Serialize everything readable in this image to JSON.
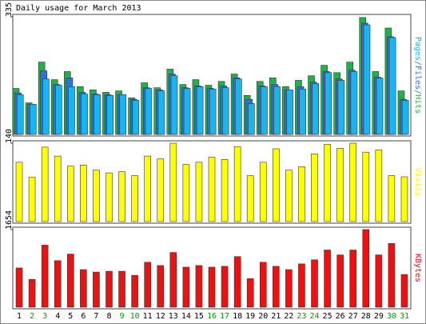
{
  "chart_data": [
    {
      "type": "bar",
      "title": "Daily usage for March 2013",
      "categories": [
        "1",
        "2",
        "3",
        "4",
        "5",
        "6",
        "7",
        "8",
        "9",
        "10",
        "11",
        "12",
        "13",
        "14",
        "15",
        "16",
        "17",
        "18",
        "19",
        "20",
        "21",
        "22",
        "23",
        "24",
        "25",
        "26",
        "27",
        "28",
        "29",
        "30",
        "31"
      ],
      "weekend": [
        "2",
        "3",
        "9",
        "10",
        "16",
        "17",
        "23",
        "24",
        "30",
        "31"
      ],
      "weekend_color": "#00a000",
      "legend_separator": "/",
      "ylim": [
        0,
        335
      ],
      "yticks": [
        335
      ],
      "series": [
        {
          "name": "Hits",
          "color": "#22b04a",
          "values": [
            131,
            90,
            206,
            156,
            179,
            136,
            127,
            120,
            124,
            104,
            147,
            133,
            186,
            142,
            156,
            140,
            151,
            172,
            111,
            151,
            161,
            136,
            154,
            167,
            197,
            176,
            206,
            333,
            179,
            303,
            124
          ]
        },
        {
          "name": "Files",
          "color": "#2f6fe0",
          "values": [
            118,
            86,
            181,
            142,
            161,
            120,
            115,
            113,
            113,
            100,
            133,
            127,
            172,
            133,
            138,
            131,
            138,
            161,
            100,
            138,
            142,
            127,
            136,
            149,
            179,
            158,
            183,
            317,
            163,
            278,
            100
          ]
        },
        {
          "name": "Pages",
          "color": "#19b5f0",
          "values": [
            113,
            86,
            158,
            140,
            136,
            115,
            113,
            111,
            113,
            97,
            131,
            124,
            167,
            131,
            136,
            129,
            133,
            158,
            88,
            136,
            136,
            127,
            129,
            145,
            176,
            154,
            179,
            312,
            161,
            276,
            97
          ]
        }
      ]
    },
    {
      "type": "bar",
      "ylim": [
        0,
        140
      ],
      "yticks": [
        140
      ],
      "series": [
        {
          "name": "Visits",
          "color": "#ffff00",
          "values": [
            106,
            79,
            133,
            117,
            99,
            101,
            92,
            87,
            89,
            82,
            117,
            112,
            140,
            102,
            106,
            115,
            111,
            134,
            82,
            106,
            130,
            92,
            98,
            121,
            138,
            131,
            140,
            124,
            128,
            82,
            80
          ]
        }
      ]
    },
    {
      "type": "bar",
      "ylim": [
        0,
        1654
      ],
      "yticks": [
        1654
      ],
      "series": [
        {
          "name": "KBytes",
          "color": "#ee1111",
          "values": [
            836,
            592,
            1323,
            992,
            1132,
            801,
            749,
            766,
            766,
            679,
            958,
            888,
            1166,
            853,
            888,
            853,
            871,
            1079,
            609,
            958,
            871,
            801,
            923,
            1010,
            1219,
            1114,
            1219,
            1654,
            1114,
            1358,
            697
          ]
        }
      ]
    }
  ]
}
